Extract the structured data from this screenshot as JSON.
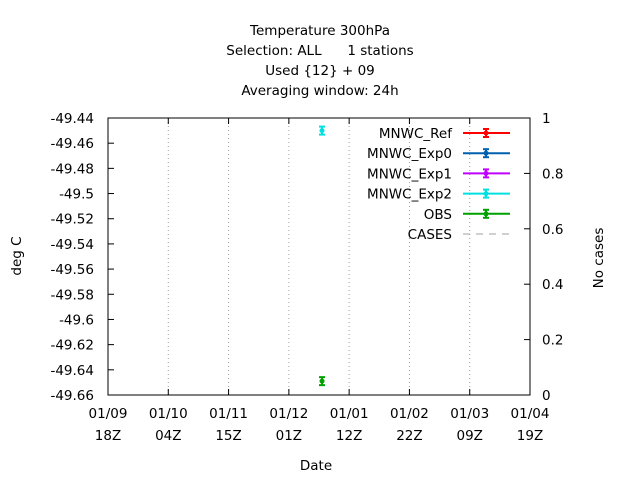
{
  "chart_data": {
    "type": "scatter",
    "title_lines": [
      "Temperature 300hPa",
      "Selection: ALL      1 stations",
      "Used {12} + 09",
      "Averaging window: 24h"
    ],
    "xlabel": "Date",
    "ylabel": "deg C",
    "y2label": "No cases",
    "y_ticks": [
      "-49.44",
      "-49.46",
      "-49.48",
      "-49.5",
      "-49.52",
      "-49.54",
      "-49.56",
      "-49.58",
      "-49.6",
      "-49.62",
      "-49.64",
      "-49.66"
    ],
    "ylim": [
      -49.66,
      -49.44
    ],
    "y2_ticks": [
      "1",
      "0.8",
      "0.6",
      "0.4",
      "0.2",
      "0"
    ],
    "y2lim": [
      0,
      1
    ],
    "x_ticks": [
      {
        "date": "01/09",
        "time": "18Z"
      },
      {
        "date": "01/10",
        "time": "04Z"
      },
      {
        "date": "01/11",
        "time": "15Z"
      },
      {
        "date": "01/12",
        "time": "01Z"
      },
      {
        "date": "01/01",
        "time": "12Z"
      },
      {
        "date": "01/02",
        "time": "22Z"
      },
      {
        "date": "01/03",
        "time": "09Z"
      },
      {
        "date": "01/04",
        "time": "19Z"
      }
    ],
    "legend_position": "top-right",
    "legend": [
      {
        "name": "MNWC_Ref",
        "color": "#ff0000",
        "style": "line-point"
      },
      {
        "name": "MNWC_Exp0",
        "color": "#0060ad",
        "style": "line-point"
      },
      {
        "name": "MNWC_Exp1",
        "color": "#c000ff",
        "style": "line-point"
      },
      {
        "name": "MNWC_Exp2",
        "color": "#00e0e0",
        "style": "line-point"
      },
      {
        "name": "OBS",
        "color": "#00a000",
        "style": "line-point"
      },
      {
        "name": "CASES",
        "color": "#a0a0a0",
        "style": "dashed"
      }
    ],
    "points": [
      {
        "series": "MNWC_Exp2",
        "x_tick_position": 3.55,
        "y": -49.45,
        "color": "#00e0e0"
      },
      {
        "series": "OBS",
        "x_tick_position": 3.55,
        "y": -49.649,
        "color": "#00a000"
      }
    ]
  }
}
